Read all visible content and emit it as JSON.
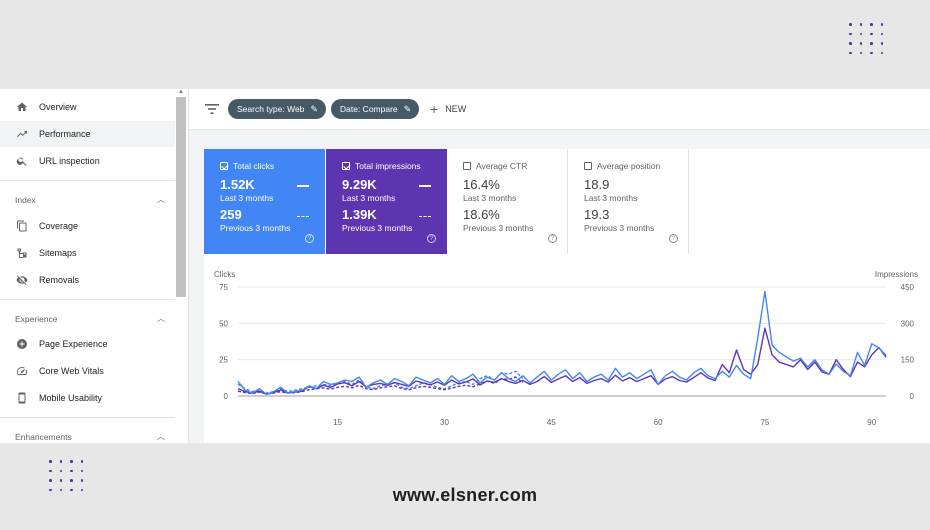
{
  "sidebar": {
    "top_items": [
      {
        "label": "Overview",
        "icon": "home-icon"
      },
      {
        "label": "Performance",
        "icon": "trending-up-icon"
      },
      {
        "label": "URL inspection",
        "icon": "search-icon"
      }
    ],
    "sections": [
      {
        "title": "Index",
        "items": [
          {
            "label": "Coverage",
            "icon": "copy-icon"
          },
          {
            "label": "Sitemaps",
            "icon": "sitemap-icon"
          },
          {
            "label": "Removals",
            "icon": "eye-off-icon"
          }
        ]
      },
      {
        "title": "Experience",
        "items": [
          {
            "label": "Page Experience",
            "icon": "plus-circle-icon"
          },
          {
            "label": "Core Web Vitals",
            "icon": "speed-gauge-icon"
          },
          {
            "label": "Mobile Usability",
            "icon": "smartphone-icon"
          }
        ]
      },
      {
        "title": "Enhancements",
        "items": []
      }
    ],
    "active_item": "Performance"
  },
  "toolbar": {
    "chip_search_type": "Search type: Web",
    "chip_date": "Date: Compare",
    "new_label": "NEW"
  },
  "metrics": [
    {
      "label": "Total clicks",
      "checked": true,
      "value": "1.52K",
      "period": "Last 3 months",
      "value_prev": "259",
      "period_prev": "Previous 3 months",
      "color": "#4285f4"
    },
    {
      "label": "Total impressions",
      "checked": true,
      "value": "9.29K",
      "period": "Last 3 months",
      "value_prev": "1.39K",
      "period_prev": "Previous 3 months",
      "color": "#5e35b1"
    },
    {
      "label": "Average CTR",
      "checked": false,
      "value": "16.4%",
      "period": "Last 3 months",
      "value_prev": "18.6%",
      "period_prev": "Previous 3 months"
    },
    {
      "label": "Average position",
      "checked": false,
      "value": "18.9",
      "period": "Last 3 months",
      "value_prev": "19.3",
      "period_prev": "Previous 3 months"
    }
  ],
  "chart_data": {
    "type": "line",
    "ylabel_left": "Clicks",
    "ylabel_right": "Impressions",
    "y_left_ticks": [
      "75",
      "50",
      "25",
      "0"
    ],
    "y_right_ticks": [
      "450",
      "300",
      "150",
      "0"
    ],
    "x_ticks": [
      "15",
      "30",
      "45",
      "60",
      "75",
      "90"
    ],
    "ylim_left": [
      0,
      75
    ],
    "ylim_right": [
      0,
      450
    ],
    "xlim": [
      1,
      92
    ],
    "series": [
      {
        "role": "clicks-last",
        "axis": "left",
        "color": "#4285f4",
        "dash": false,
        "x": [
          1,
          2,
          3,
          4,
          5,
          6,
          7,
          8,
          9,
          10,
          11,
          12,
          13,
          14,
          15,
          16,
          17,
          18,
          19,
          20,
          21,
          22,
          23,
          24,
          25,
          26,
          27,
          28,
          29,
          30,
          31,
          32,
          33,
          34,
          35,
          36,
          37,
          38,
          39,
          40,
          41,
          42,
          43,
          44,
          45,
          46,
          47,
          48,
          49,
          50,
          51,
          52,
          53,
          54,
          55,
          56,
          57,
          58,
          59,
          60,
          61,
          62,
          63,
          64,
          65,
          66,
          67,
          68,
          69,
          70,
          71,
          72,
          73,
          74,
          75,
          76,
          77,
          78,
          79,
          80,
          81,
          82,
          83,
          84,
          85,
          86,
          87,
          88,
          89,
          90,
          91,
          92
        ],
        "y": [
          10,
          4,
          2,
          5,
          1,
          3,
          6,
          2,
          3,
          4,
          7,
          5,
          10,
          8,
          9,
          11,
          10,
          13,
          6,
          9,
          11,
          8,
          12,
          10,
          7,
          13,
          11,
          9,
          12,
          8,
          14,
          10,
          12,
          15,
          9,
          13,
          11,
          16,
          12,
          10,
          14,
          9,
          13,
          17,
          11,
          15,
          18,
          12,
          16,
          10,
          13,
          15,
          11,
          19,
          13,
          16,
          12,
          15,
          18,
          8,
          14,
          17,
          13,
          11,
          16,
          19,
          14,
          12,
          17,
          13,
          21,
          15,
          12,
          40,
          72,
          35,
          30,
          27,
          24,
          26,
          20,
          25,
          18,
          15,
          22,
          17,
          14,
          30,
          21,
          36,
          33,
          28
        ]
      },
      {
        "role": "impressions-last",
        "axis": "right",
        "color": "#5e35b1",
        "dash": false,
        "x": [
          1,
          2,
          3,
          4,
          5,
          6,
          7,
          8,
          9,
          10,
          11,
          12,
          13,
          14,
          15,
          16,
          17,
          18,
          19,
          20,
          21,
          22,
          23,
          24,
          25,
          26,
          27,
          28,
          29,
          30,
          31,
          32,
          33,
          34,
          35,
          36,
          37,
          38,
          39,
          40,
          41,
          42,
          43,
          44,
          45,
          46,
          47,
          48,
          49,
          50,
          51,
          52,
          53,
          54,
          55,
          56,
          57,
          58,
          59,
          60,
          61,
          62,
          63,
          64,
          65,
          66,
          67,
          68,
          69,
          70,
          71,
          72,
          73,
          74,
          75,
          76,
          77,
          78,
          79,
          80,
          81,
          82,
          83,
          84,
          85,
          86,
          87,
          88,
          89,
          90,
          91,
          92
        ],
        "y": [
          30,
          18,
          12,
          20,
          8,
          14,
          25,
          12,
          16,
          20,
          40,
          30,
          45,
          35,
          50,
          55,
          42,
          60,
          38,
          48,
          52,
          44,
          56,
          48,
          40,
          62,
          54,
          46,
          58,
          44,
          66,
          50,
          58,
          70,
          46,
          62,
          56,
          72,
          60,
          52,
          64,
          48,
          60,
          80,
          56,
          70,
          84,
          60,
          76,
          52,
          64,
          72,
          58,
          86,
          62,
          76,
          60,
          72,
          84,
          48,
          70,
          80,
          64,
          58,
          76,
          96,
          74,
          64,
          130,
          96,
          190,
          110,
          90,
          130,
          280,
          170,
          140,
          130,
          120,
          150,
          110,
          140,
          100,
          90,
          150,
          110,
          80,
          140,
          120,
          170,
          200,
          160
        ]
      },
      {
        "role": "clicks-previous",
        "axis": "left",
        "color": "#4285f4",
        "dash": true,
        "x": [
          1,
          2,
          3,
          4,
          5,
          6,
          7,
          8,
          9,
          10,
          11,
          12,
          13,
          14,
          15,
          16,
          17,
          18,
          19,
          20,
          21,
          22,
          23,
          24,
          25,
          26,
          27,
          28,
          29,
          30,
          31,
          32,
          33,
          34,
          35,
          36,
          37,
          38,
          39,
          40,
          41
        ],
        "y": [
          8,
          5,
          3,
          4,
          2,
          3,
          5,
          3,
          4,
          5,
          6,
          7,
          8,
          7,
          9,
          10,
          8,
          11,
          6,
          5,
          7,
          8,
          9,
          6,
          5,
          7,
          9,
          8,
          6,
          5,
          7,
          9,
          10,
          8,
          12,
          14,
          11,
          16,
          15,
          17,
          12
        ]
      },
      {
        "role": "impressions-previous",
        "axis": "right",
        "color": "#5e35b1",
        "dash": true,
        "x": [
          1,
          2,
          3,
          4,
          5,
          6,
          7,
          8,
          9,
          10,
          11,
          12,
          13,
          14,
          15,
          16,
          17,
          18,
          19,
          20,
          21,
          22,
          23,
          24,
          25,
          26,
          27,
          28,
          29,
          30,
          31,
          32,
          33,
          34,
          35,
          36,
          37,
          38,
          39,
          40,
          41
        ],
        "y": [
          20,
          14,
          10,
          16,
          8,
          12,
          18,
          12,
          14,
          18,
          26,
          30,
          34,
          28,
          36,
          40,
          34,
          44,
          30,
          26,
          34,
          38,
          42,
          30,
          26,
          34,
          40,
          36,
          30,
          26,
          32,
          40,
          44,
          38,
          50,
          62,
          52,
          72,
          68,
          78,
          56
        ]
      }
    ]
  },
  "footer": {
    "url": "www.elsner.com"
  }
}
